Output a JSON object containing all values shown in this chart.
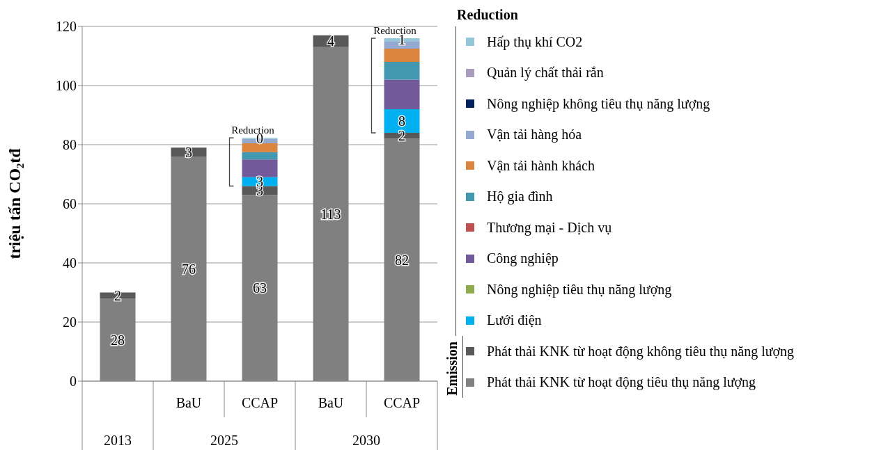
{
  "chart_data": {
    "type": "bar",
    "stacked": true,
    "ylabel": "triệu tấn CO₂tđ",
    "categories": [
      null,
      "BaU",
      "CCAP",
      "BaU",
      "CCAP"
    ],
    "ylim": [
      0,
      120
    ],
    "yticks": [
      0,
      20,
      40,
      60,
      80,
      100,
      120
    ],
    "grid": "y",
    "legend": "right",
    "legend_title": "Reduction",
    "annotations": [
      "Reduction",
      "Reduction",
      "Emission",
      "2013",
      "2025",
      "2030"
    ],
    "series": [
      {
        "name": "Phát thải KNK từ hoạt động tiêu thụ năng lượng",
        "color": "#808080",
        "values": [
          28,
          76,
          63,
          113,
          82
        ],
        "value_labels": [
          "28",
          "76",
          "63",
          "113",
          "82"
        ]
      },
      {
        "name": "Phát thải KNK từ hoạt động không tiêu thụ năng lượng",
        "color": "#595959",
        "values": [
          2,
          3,
          3,
          4,
          2
        ],
        "value_labels": [
          "2",
          "3",
          "3",
          "4",
          "2"
        ]
      },
      {
        "name": "Lưới điện",
        "color": "#00b0f0",
        "values": [
          null,
          null,
          3,
          null,
          8
        ],
        "value_labels": [
          null,
          null,
          "3",
          null,
          "8"
        ]
      },
      {
        "name": "Nông nghiệp tiêu thụ năng lượng",
        "color": "#8faa4f",
        "values": [
          null,
          null,
          0,
          null,
          0
        ]
      },
      {
        "name": "Công nghiệp",
        "color": "#72599a",
        "values": [
          null,
          null,
          6,
          null,
          10
        ]
      },
      {
        "name": "Thương mại - Dịch vụ",
        "color": "#c0504d",
        "values": [
          null,
          null,
          0,
          null,
          0
        ]
      },
      {
        "name": "Hộ gia đình",
        "color": "#4198af",
        "values": [
          null,
          null,
          2.5,
          null,
          6
        ]
      },
      {
        "name": "Vận tải hành khách",
        "color": "#db843d",
        "values": [
          null,
          null,
          3,
          null,
          4.5
        ]
      },
      {
        "name": "Vận tải hàng hóa",
        "color": "#93a9cf",
        "values": [
          null,
          null,
          1.5,
          null,
          2.5
        ]
      },
      {
        "name": "Nông nghiệp không tiêu thụ năng lượng",
        "color": "#002060",
        "values": [
          null,
          null,
          0,
          null,
          0
        ]
      },
      {
        "name": "Quản lý chất thải rắn",
        "color": "#a99bbd",
        "values": [
          null,
          null,
          0,
          null,
          0
        ]
      },
      {
        "name": "Hấp thụ khí CO2",
        "color": "#92c6d8",
        "values": [
          null,
          null,
          0.3,
          null,
          1
        ],
        "value_labels": [
          null,
          null,
          "0",
          null,
          "1"
        ]
      }
    ]
  }
}
